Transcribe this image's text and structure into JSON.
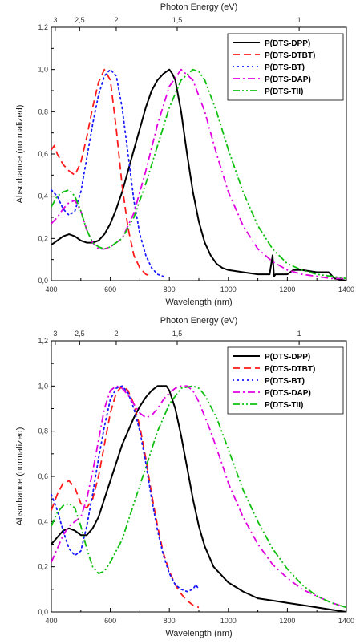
{
  "colors": {
    "P(DTS-DPP)": "#000000",
    "P(DTS-DTBT)": "#ff1a1a",
    "P(DTS-BT)": "#1a1aff",
    "P(DTS-DAP)": "#e000e0",
    "P(DTS-TII)": "#10c010"
  },
  "chart_data": [
    {
      "type": "line",
      "xlabel": "Wavelength (nm)",
      "ylabel": "Absorbance (normalized)",
      "x2label": "Photon Energy (eV)",
      "xlim": [
        400,
        1400
      ],
      "ylim": [
        0,
        1.2
      ],
      "xticks": [
        "400",
        "600",
        "800",
        "1000",
        "1200",
        "1400"
      ],
      "xtick_values": [
        400,
        600,
        800,
        1000,
        1200,
        1400
      ],
      "yticks": [
        "0,0",
        "0,2",
        "0,4",
        "0,6",
        "0,8",
        "1,0",
        "1,2"
      ],
      "ytick_values": [
        0,
        0.2,
        0.4,
        0.6,
        0.8,
        1.0,
        1.2
      ],
      "x2ticks": [
        "3",
        "2,5",
        "2",
        "1,5",
        "1"
      ],
      "x2tick_values": [
        3,
        2.5,
        2,
        1.5,
        1
      ],
      "legend_position": "top-right",
      "series": [
        {
          "name": "P(DTS-DPP)",
          "style": "solid",
          "x": [
            400,
            420,
            440,
            460,
            480,
            500,
            520,
            540,
            560,
            580,
            600,
            620,
            640,
            660,
            680,
            700,
            720,
            740,
            760,
            780,
            800,
            810,
            820,
            840,
            860,
            880,
            900,
            920,
            940,
            960,
            980,
            1000,
            1050,
            1100,
            1140,
            1150,
            1155,
            1160,
            1170,
            1200,
            1220,
            1250,
            1300,
            1340,
            1360,
            1400
          ],
          "y": [
            0.17,
            0.19,
            0.21,
            0.22,
            0.21,
            0.19,
            0.18,
            0.18,
            0.19,
            0.22,
            0.27,
            0.34,
            0.42,
            0.52,
            0.62,
            0.72,
            0.82,
            0.9,
            0.95,
            0.98,
            1.0,
            0.98,
            0.95,
            0.8,
            0.6,
            0.42,
            0.28,
            0.18,
            0.12,
            0.08,
            0.06,
            0.05,
            0.04,
            0.03,
            0.03,
            0.12,
            0.02,
            0.03,
            0.03,
            0.03,
            0.05,
            0.05,
            0.04,
            0.04,
            0.01,
            0.0
          ]
        },
        {
          "name": "P(DTS-DTBT)",
          "style": "dash",
          "x": [
            400,
            410,
            420,
            440,
            460,
            480,
            500,
            520,
            540,
            560,
            580,
            600,
            620,
            640,
            660,
            680,
            700,
            720,
            740
          ],
          "y": [
            0.62,
            0.64,
            0.6,
            0.55,
            0.52,
            0.5,
            0.56,
            0.68,
            0.82,
            0.94,
            1.0,
            0.95,
            0.72,
            0.45,
            0.25,
            0.12,
            0.06,
            0.03,
            0.02
          ]
        },
        {
          "name": "P(DTS-BT)",
          "style": "dot",
          "x": [
            400,
            420,
            440,
            460,
            480,
            500,
            520,
            540,
            560,
            580,
            600,
            620,
            640,
            660,
            680,
            700,
            720,
            740,
            760,
            780
          ],
          "y": [
            0.43,
            0.4,
            0.34,
            0.31,
            0.33,
            0.42,
            0.58,
            0.74,
            0.88,
            0.97,
            1.0,
            0.97,
            0.82,
            0.6,
            0.38,
            0.22,
            0.12,
            0.06,
            0.03,
            0.02
          ]
        },
        {
          "name": "P(DTS-DAP)",
          "style": "dashdot",
          "x": [
            400,
            420,
            440,
            460,
            480,
            500,
            520,
            540,
            560,
            580,
            600,
            640,
            680,
            720,
            760,
            800,
            840,
            880,
            920,
            960,
            1000,
            1050,
            1100,
            1150,
            1200,
            1250,
            1300,
            1350,
            1400
          ],
          "y": [
            0.27,
            0.3,
            0.34,
            0.37,
            0.38,
            0.33,
            0.24,
            0.18,
            0.15,
            0.15,
            0.16,
            0.2,
            0.32,
            0.52,
            0.74,
            0.92,
            1.0,
            0.95,
            0.8,
            0.6,
            0.42,
            0.26,
            0.15,
            0.09,
            0.05,
            0.03,
            0.02,
            0.01,
            0.01
          ]
        },
        {
          "name": "P(DTS-TII)",
          "style": "dashdotdot",
          "x": [
            400,
            420,
            440,
            460,
            480,
            500,
            520,
            540,
            560,
            580,
            600,
            640,
            680,
            720,
            760,
            800,
            840,
            880,
            900,
            920,
            960,
            1000,
            1050,
            1100,
            1150,
            1200,
            1250,
            1300,
            1350,
            1400
          ],
          "y": [
            0.35,
            0.4,
            0.42,
            0.43,
            0.4,
            0.33,
            0.24,
            0.18,
            0.16,
            0.15,
            0.16,
            0.2,
            0.3,
            0.46,
            0.64,
            0.82,
            0.95,
            1.0,
            0.99,
            0.95,
            0.8,
            0.62,
            0.42,
            0.26,
            0.15,
            0.08,
            0.05,
            0.03,
            0.02,
            0.01
          ]
        }
      ]
    },
    {
      "type": "line",
      "xlabel": "Wavelength (nm)",
      "ylabel": "Absorbance (normalized)",
      "x2label": "Photon Energy (eV)",
      "xlim": [
        400,
        1400
      ],
      "ylim": [
        0,
        1.2
      ],
      "xticks": [
        "400",
        "600",
        "800",
        "1000",
        "1200",
        "1400"
      ],
      "xtick_values": [
        400,
        600,
        800,
        1000,
        1200,
        1400
      ],
      "yticks": [
        "0,0",
        "0,2",
        "0,4",
        "0,6",
        "0,8",
        "1,0",
        "1,2"
      ],
      "ytick_values": [
        0,
        0.2,
        0.4,
        0.6,
        0.8,
        1.0,
        1.2
      ],
      "x2ticks": [
        "3",
        "2,5",
        "2",
        "1,5",
        "1"
      ],
      "x2tick_values": [
        3,
        2.5,
        2,
        1.5,
        1
      ],
      "legend_position": "top-right",
      "series": [
        {
          "name": "P(DTS-DPP)",
          "style": "solid",
          "x": [
            400,
            420,
            440,
            460,
            480,
            500,
            520,
            540,
            560,
            580,
            600,
            620,
            640,
            660,
            680,
            700,
            720,
            740,
            760,
            780,
            790,
            800,
            820,
            840,
            860,
            880,
            900,
            920,
            950,
            1000,
            1050,
            1100,
            1150,
            1200,
            1250,
            1300,
            1350,
            1400
          ],
          "y": [
            0.3,
            0.33,
            0.36,
            0.37,
            0.36,
            0.34,
            0.34,
            0.37,
            0.42,
            0.5,
            0.58,
            0.66,
            0.74,
            0.8,
            0.86,
            0.91,
            0.95,
            0.98,
            1.0,
            1.0,
            1.0,
            0.98,
            0.9,
            0.78,
            0.64,
            0.5,
            0.38,
            0.29,
            0.2,
            0.13,
            0.09,
            0.06,
            0.05,
            0.04,
            0.03,
            0.02,
            0.01,
            0.0
          ]
        },
        {
          "name": "P(DTS-DTBT)",
          "style": "dash",
          "x": [
            400,
            420,
            440,
            460,
            480,
            500,
            520,
            540,
            560,
            580,
            600,
            620,
            640,
            660,
            680,
            700,
            720,
            740,
            760,
            780,
            800,
            820,
            840,
            860,
            880,
            900
          ],
          "y": [
            0.45,
            0.52,
            0.57,
            0.58,
            0.55,
            0.48,
            0.46,
            0.5,
            0.6,
            0.74,
            0.88,
            0.97,
            1.0,
            0.98,
            0.92,
            0.82,
            0.68,
            0.52,
            0.38,
            0.26,
            0.18,
            0.12,
            0.08,
            0.05,
            0.03,
            0.02
          ]
        },
        {
          "name": "P(DTS-BT)",
          "style": "dot",
          "x": [
            400,
            420,
            440,
            460,
            480,
            500,
            520,
            540,
            560,
            580,
            600,
            620,
            640,
            660,
            680,
            700,
            720,
            740,
            760,
            780,
            800,
            820,
            840,
            860,
            880,
            890,
            900
          ],
          "y": [
            0.52,
            0.45,
            0.36,
            0.28,
            0.25,
            0.27,
            0.38,
            0.52,
            0.68,
            0.82,
            0.94,
            0.99,
            1.0,
            0.97,
            0.9,
            0.8,
            0.66,
            0.5,
            0.36,
            0.25,
            0.17,
            0.12,
            0.1,
            0.09,
            0.1,
            0.12,
            0.1
          ]
        },
        {
          "name": "P(DTS-DAP)",
          "style": "dashdot",
          "x": [
            400,
            420,
            440,
            460,
            480,
            500,
            520,
            540,
            560,
            580,
            600,
            620,
            640,
            660,
            680,
            700,
            720,
            740,
            760,
            780,
            800,
            820,
            840,
            860,
            880,
            900,
            940,
            980,
            1000,
            1050,
            1100,
            1150,
            1200,
            1250,
            1300,
            1350,
            1400
          ],
          "y": [
            0.22,
            0.28,
            0.34,
            0.38,
            0.4,
            0.42,
            0.5,
            0.62,
            0.76,
            0.9,
            0.98,
            1.0,
            0.99,
            0.96,
            0.92,
            0.88,
            0.86,
            0.87,
            0.9,
            0.94,
            0.97,
            0.99,
            1.0,
            1.0,
            0.98,
            0.93,
            0.8,
            0.65,
            0.57,
            0.42,
            0.3,
            0.21,
            0.15,
            0.1,
            0.07,
            0.04,
            0.02
          ]
        },
        {
          "name": "P(DTS-TII)",
          "style": "dashdotdot",
          "x": [
            400,
            420,
            440,
            460,
            480,
            500,
            520,
            540,
            560,
            580,
            600,
            640,
            680,
            720,
            760,
            800,
            840,
            880,
            900,
            920,
            960,
            1000,
            1050,
            1100,
            1150,
            1200,
            1250,
            1300,
            1350,
            1400
          ],
          "y": [
            0.38,
            0.44,
            0.47,
            0.48,
            0.46,
            0.38,
            0.28,
            0.2,
            0.17,
            0.18,
            0.22,
            0.32,
            0.48,
            0.64,
            0.8,
            0.92,
            0.99,
            1.0,
            0.99,
            0.96,
            0.86,
            0.72,
            0.54,
            0.4,
            0.28,
            0.19,
            0.12,
            0.07,
            0.04,
            0.02
          ]
        }
      ]
    }
  ]
}
